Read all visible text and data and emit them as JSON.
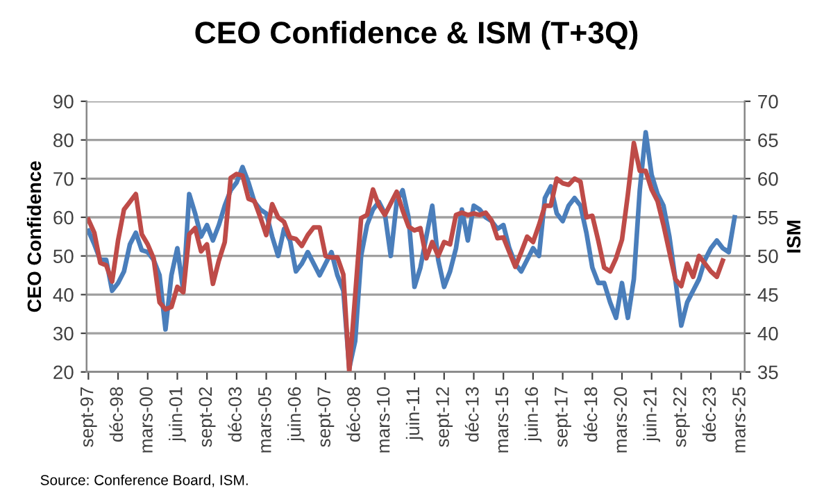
{
  "chart_data": {
    "type": "line",
    "title": "CEO Confidence & ISM (T+3Q)",
    "ylabel": "CEO Confidence",
    "y2label": "ISM",
    "annotations": [
      "Source: Conference Board, ISM."
    ],
    "categories": [
      "sept-97",
      null,
      null,
      null,
      null,
      "déc-98",
      null,
      null,
      null,
      null,
      "mars-00",
      null,
      null,
      null,
      null,
      "juin-01",
      null,
      null,
      null,
      null,
      "sept-02",
      null,
      null,
      null,
      null,
      "déc-03",
      null,
      null,
      null,
      null,
      "mars-05",
      null,
      null,
      null,
      null,
      "juin-06",
      null,
      null,
      null,
      null,
      "sept-07",
      null,
      null,
      null,
      null,
      "déc-08",
      null,
      null,
      null,
      null,
      "mars-10",
      null,
      null,
      null,
      null,
      "juin-11",
      null,
      null,
      null,
      null,
      "sept-12",
      null,
      null,
      null,
      null,
      "déc-13",
      null,
      null,
      null,
      null,
      "mars-15",
      null,
      null,
      null,
      null,
      "juin-16",
      null,
      null,
      null,
      null,
      "sept-17",
      null,
      null,
      null,
      null,
      "déc-18",
      null,
      null,
      null,
      null,
      "mars-20",
      null,
      null,
      null,
      null,
      "juin-21",
      null,
      null,
      null,
      null,
      "sept-22",
      null,
      null,
      null,
      null,
      "déc-23",
      null,
      null,
      null,
      null,
      "mars-25"
    ],
    "series": [
      {
        "color": "#4a7ebb",
        "values": [
          56.5,
          53,
          49,
          49,
          41,
          43,
          46,
          53,
          56,
          51.5,
          51,
          49,
          45,
          31,
          45,
          52,
          41,
          66,
          61,
          55,
          58,
          54,
          58,
          63,
          67,
          69,
          73,
          69,
          64,
          62,
          61,
          55,
          50,
          57,
          54,
          46,
          48,
          51,
          48,
          45,
          48,
          51,
          45,
          41,
          21,
          28,
          50,
          58,
          62,
          64,
          61,
          50,
          64,
          67,
          60,
          42,
          47,
          55,
          63,
          49,
          42,
          46,
          52,
          62,
          54,
          63,
          62,
          60,
          59,
          57,
          58,
          52,
          48,
          46,
          49,
          52,
          50,
          65,
          68,
          61,
          59,
          63,
          65,
          63,
          56,
          47,
          43,
          43,
          38,
          34,
          43,
          34,
          44,
          67,
          82,
          71,
          66,
          63,
          55,
          44,
          32,
          38,
          41,
          44,
          49,
          52,
          54,
          52,
          51,
          60,
          null
        ]
      },
      {
        "color": "#be4b48",
        "axis": "y2",
        "values": [
          54.7,
          53,
          49.1,
          48.8,
          46.7,
          52,
          56,
          57,
          58,
          52.8,
          51.5,
          49.7,
          44,
          43.1,
          43.4,
          46,
          45.3,
          52.8,
          53.6,
          50.6,
          51.5,
          46.4,
          49.4,
          51.8,
          60.1,
          60.6,
          60.4,
          57.4,
          57.1,
          55,
          52.7,
          56.7,
          55,
          54.4,
          52.4,
          52.2,
          51.3,
          52.7,
          53.7,
          53.7,
          50,
          49.8,
          49.8,
          47.6,
          35,
          44.9,
          54.9,
          55.3,
          58.6,
          56.5,
          55.3,
          56.8,
          58.3,
          55.9,
          53.8,
          53.3,
          53.6,
          49.7,
          51.8,
          50,
          51.8,
          51.5,
          55.3,
          55.6,
          55.3,
          55.5,
          55.3,
          55.6,
          54.6,
          52.3,
          52.4,
          50.5,
          48.6,
          50.5,
          52.5,
          51.8,
          54,
          56.5,
          56.5,
          60,
          59.4,
          59.2,
          60,
          59.6,
          55,
          55.2,
          52,
          48.5,
          48,
          49.7,
          52.1,
          58,
          64.6,
          61,
          61,
          58.6,
          57.1,
          54,
          50.5,
          47,
          46.1,
          49,
          47.3,
          50,
          49,
          48,
          47.3,
          49.4,
          null,
          null,
          null
        ]
      }
    ],
    "ylim": [
      20,
      90
    ],
    "yticks": [
      20,
      30,
      40,
      50,
      60,
      70,
      80,
      90
    ],
    "y2lim": [
      35,
      70
    ],
    "y2ticks": [
      35,
      40,
      45,
      50,
      55,
      60,
      65,
      70
    ],
    "grid": "y",
    "marker": "none",
    "line_style": "solid"
  }
}
